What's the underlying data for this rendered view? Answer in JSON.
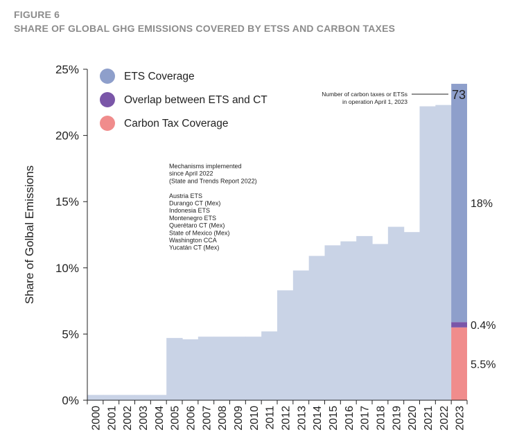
{
  "figure": {
    "label": "FIGURE 6",
    "title": "SHARE OF GLOBAL GHG EMISSIONS COVERED BY ETSS AND CARBON TAXES"
  },
  "chart_data": {
    "type": "area",
    "x": [
      "2000",
      "2001",
      "2002",
      "2003",
      "2004",
      "2005",
      "2006",
      "2007",
      "2008",
      "2009",
      "2010",
      "2011",
      "2012",
      "2013",
      "2014",
      "2015",
      "2016",
      "2017",
      "2018",
      "2019",
      "2020",
      "2021",
      "2022",
      "2023"
    ],
    "total_values": [
      0.4,
      0.4,
      0.4,
      0.4,
      0.4,
      4.7,
      4.6,
      4.8,
      4.8,
      4.8,
      4.8,
      5.2,
      8.3,
      9.8,
      10.9,
      11.7,
      12.0,
      12.4,
      11.8,
      13.1,
      12.7,
      22.2,
      22.3,
      23.9
    ],
    "stacked_2023": [
      {
        "name": "Carbon Tax Coverage",
        "value": 5.5,
        "label": "5.5%"
      },
      {
        "name": "Overlap between ETS and CT",
        "value": 0.4,
        "label": "0.4%"
      },
      {
        "name": "ETS Coverage",
        "value": 18,
        "label": "18%"
      }
    ],
    "ylabel": "Share of Golbal Emissions",
    "xlabel": "",
    "ylim": [
      0,
      25
    ],
    "yticks": [
      0,
      5,
      10,
      15,
      20,
      25
    ],
    "ytick_labels": [
      "0%",
      "5%",
      "10%",
      "15%",
      "20%",
      "25%"
    ],
    "legend": [
      {
        "name": "ETS Coverage",
        "color": "#8e9fcb"
      },
      {
        "name": "Overlap between ETS and CT",
        "color": "#7a56a8"
      },
      {
        "name": "Carbon Tax Coverage",
        "color": "#f08c8c"
      }
    ],
    "colors": {
      "history": "#c9d3e6",
      "ets": "#8e9fcb",
      "overlap": "#7a56a8",
      "ct": "#f08c8c"
    },
    "count_annotation": {
      "text_line1": "Number of carbon taxes or ETSs",
      "text_line2": "in operation April 1, 2023",
      "value": "73"
    },
    "mechanisms_note": {
      "header": [
        "Mechanisms implemented",
        "since April 2022",
        "(State and Trends Report 2022)"
      ],
      "items": [
        "Austria ETS",
        "Durango CT (Mex)",
        "Indonesia ETS",
        "Montenegro ETS",
        "Querétaro CT (Mex)",
        "State of Mexico (Mex)",
        "Washington CCA",
        "Yucatán CT (Mex)"
      ]
    }
  }
}
